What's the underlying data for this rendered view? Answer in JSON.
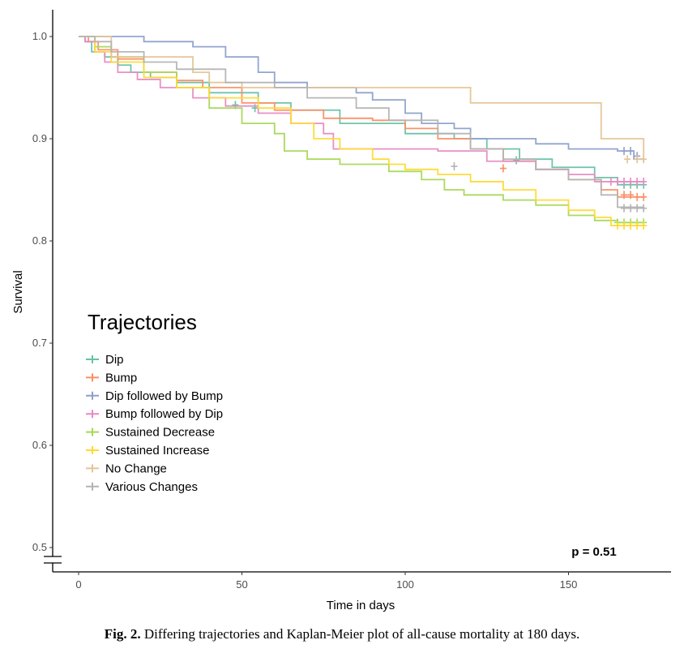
{
  "chart_data": {
    "type": "line",
    "subtype": "kaplan-meier step",
    "xlabel": "Time in days",
    "ylabel": "Survival",
    "xlim": [
      -8,
      182
    ],
    "ylim": [
      0.48,
      1.03
    ],
    "xticks": [
      0,
      50,
      100,
      150
    ],
    "xtick_labels": [
      "0",
      "50",
      "100",
      "150"
    ],
    "yticks": [
      0.5,
      0.6,
      0.7,
      0.8,
      0.9,
      1.0
    ],
    "ytick_labels": [
      "0.5",
      "0.6",
      "0.7",
      "0.8",
      "0.9",
      "1.0"
    ],
    "y_axis_break": true,
    "grid": false,
    "legend_title": "Trajectories",
    "legend_position": "left-middle",
    "annotation": "p = 0.51",
    "series": [
      {
        "name": "Dip",
        "color": "#66c2a5",
        "x": [
          0,
          2,
          4,
          8,
          12,
          16,
          22,
          30,
          40,
          55,
          65,
          80,
          100,
          115,
          125,
          135,
          145,
          158,
          165,
          173
        ],
        "y": [
          1.0,
          0.995,
          0.985,
          0.98,
          0.972,
          0.965,
          0.96,
          0.955,
          0.945,
          0.935,
          0.928,
          0.915,
          0.905,
          0.9,
          0.89,
          0.88,
          0.872,
          0.862,
          0.855,
          0.855
        ],
        "censor_x": [
          48,
          54,
          134,
          167,
          169,
          171,
          173
        ],
        "censor_y": [
          0.933,
          0.93,
          0.879,
          0.855,
          0.855,
          0.855,
          0.855
        ]
      },
      {
        "name": "Bump",
        "color": "#fc8d62",
        "x": [
          0,
          3,
          6,
          12,
          20,
          30,
          38,
          50,
          60,
          75,
          90,
          100,
          110,
          120,
          130,
          140,
          150,
          160,
          165,
          173
        ],
        "y": [
          1.0,
          0.995,
          0.987,
          0.978,
          0.965,
          0.957,
          0.95,
          0.935,
          0.928,
          0.92,
          0.918,
          0.91,
          0.9,
          0.89,
          0.878,
          0.87,
          0.86,
          0.85,
          0.843,
          0.843
        ],
        "censor_x": [
          130,
          167,
          169,
          171,
          173
        ],
        "censor_y": [
          0.871,
          0.845,
          0.845,
          0.843,
          0.843
        ]
      },
      {
        "name": "Dip followed by Bump",
        "color": "#8da0cb",
        "x": [
          0,
          20,
          35,
          45,
          55,
          60,
          70,
          85,
          90,
          100,
          105,
          115,
          120,
          140,
          150,
          165,
          170,
          173
        ],
        "y": [
          1.0,
          0.995,
          0.99,
          0.98,
          0.965,
          0.955,
          0.95,
          0.945,
          0.938,
          0.925,
          0.915,
          0.91,
          0.9,
          0.895,
          0.89,
          0.888,
          0.88,
          0.878
        ],
        "censor_x": [
          167,
          169,
          171
        ],
        "censor_y": [
          0.888,
          0.888,
          0.883
        ]
      },
      {
        "name": "Bump followed by Dip",
        "color": "#e78ac3",
        "x": [
          0,
          2,
          5,
          8,
          12,
          18,
          25,
          35,
          45,
          55,
          65,
          75,
          78,
          110,
          125,
          140,
          150,
          158,
          173
        ],
        "y": [
          1.0,
          0.995,
          0.985,
          0.975,
          0.965,
          0.958,
          0.95,
          0.94,
          0.932,
          0.925,
          0.915,
          0.905,
          0.89,
          0.888,
          0.878,
          0.87,
          0.865,
          0.858,
          0.858
        ],
        "censor_x": [
          163,
          165,
          167,
          169,
          171,
          173
        ],
        "censor_y": [
          0.858,
          0.858,
          0.858,
          0.858,
          0.858,
          0.858
        ]
      },
      {
        "name": "Sustained Decrease",
        "color": "#a6d854",
        "x": [
          0,
          5,
          10,
          20,
          30,
          40,
          50,
          60,
          63,
          70,
          80,
          95,
          105,
          112,
          118,
          130,
          140,
          150,
          158,
          165,
          173
        ],
        "y": [
          1.0,
          0.99,
          0.98,
          0.965,
          0.95,
          0.93,
          0.915,
          0.905,
          0.888,
          0.88,
          0.875,
          0.868,
          0.86,
          0.85,
          0.845,
          0.84,
          0.835,
          0.825,
          0.82,
          0.818,
          0.818
        ],
        "censor_x": [
          165,
          167,
          169,
          171,
          173
        ],
        "censor_y": [
          0.818,
          0.818,
          0.818,
          0.818,
          0.818
        ]
      },
      {
        "name": "Sustained Increase",
        "color": "#ffd92f",
        "x": [
          0,
          5,
          10,
          20,
          30,
          40,
          55,
          65,
          72,
          80,
          90,
          95,
          100,
          110,
          120,
          130,
          140,
          150,
          158,
          163,
          173
        ],
        "y": [
          1.0,
          0.985,
          0.975,
          0.96,
          0.95,
          0.94,
          0.93,
          0.915,
          0.9,
          0.89,
          0.88,
          0.875,
          0.87,
          0.865,
          0.858,
          0.85,
          0.84,
          0.83,
          0.823,
          0.815,
          0.815
        ],
        "censor_x": [
          165,
          167,
          169,
          171,
          173
        ],
        "censor_y": [
          0.815,
          0.815,
          0.815,
          0.815,
          0.815
        ]
      },
      {
        "name": "No Change",
        "color": "#e5c494",
        "x": [
          0,
          10,
          35,
          40,
          50,
          120,
          160,
          173
        ],
        "y": [
          1.0,
          0.98,
          0.965,
          0.955,
          0.95,
          0.935,
          0.9,
          0.88
        ],
        "censor_x": [
          168,
          171,
          173
        ],
        "censor_y": [
          0.88,
          0.88,
          0.88
        ]
      },
      {
        "name": "Various Changes",
        "color": "#b3b3b3",
        "x": [
          0,
          5,
          10,
          20,
          30,
          45,
          60,
          70,
          85,
          95,
          110,
          120,
          130,
          140,
          150,
          160,
          165,
          173
        ],
        "y": [
          1.0,
          0.995,
          0.985,
          0.975,
          0.968,
          0.955,
          0.95,
          0.94,
          0.93,
          0.918,
          0.905,
          0.89,
          0.88,
          0.87,
          0.86,
          0.845,
          0.833,
          0.832
        ],
        "censor_x": [
          115,
          167,
          169,
          171,
          173
        ],
        "censor_y": [
          0.873,
          0.832,
          0.832,
          0.832,
          0.832
        ]
      }
    ]
  },
  "caption": {
    "label": "Fig. 2.",
    "text": " Differing trajectories and Kaplan-Meier plot of all-cause mortality at 180 days."
  }
}
